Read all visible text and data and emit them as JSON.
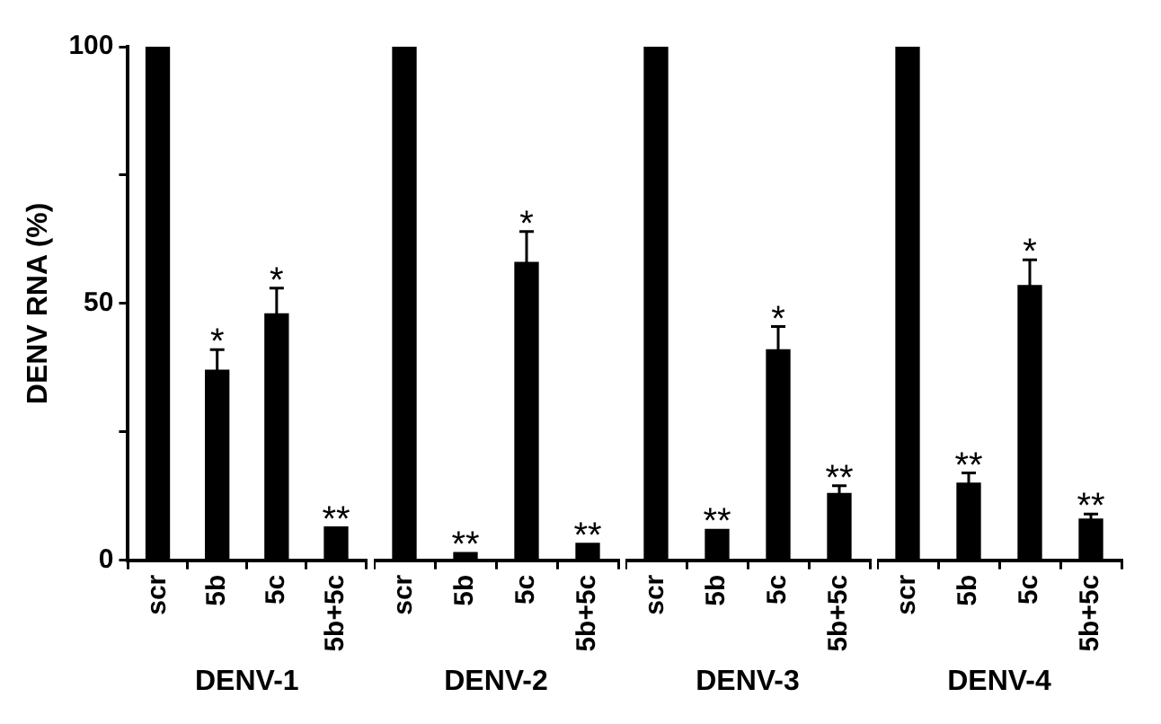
{
  "chart_data": [
    {
      "type": "bar",
      "xlabel": "DENV-1",
      "ylabel": "DENV RNA (%)",
      "categories": [
        "scr",
        "5b",
        "5c",
        "5b+5c"
      ],
      "values": [
        100,
        37,
        48,
        6.5
      ],
      "errors": [
        null,
        4,
        5,
        null
      ],
      "value_labels": [
        null,
        "*",
        "*",
        "**"
      ],
      "color": "#000000",
      "ylim": [
        0,
        100
      ],
      "yticks": [
        0,
        {
          "value": 25,
          "label": null
        },
        50,
        {
          "value": 75,
          "label": null
        },
        100
      ],
      "grid": false,
      "legend": false
    },
    {
      "type": "bar",
      "xlabel": "DENV-2",
      "categories": [
        "scr",
        "5b",
        "5c",
        "5b+5c"
      ],
      "values": [
        100,
        1.5,
        58,
        3.3
      ],
      "errors": [
        null,
        null,
        6,
        null
      ],
      "value_labels": [
        null,
        "**",
        "*",
        "**"
      ],
      "color": "#000000",
      "ylim": [
        0,
        100
      ],
      "tick_labels": "x",
      "grid": false,
      "legend": false
    },
    {
      "type": "bar",
      "xlabel": "DENV-3",
      "categories": [
        "scr",
        "5b",
        "5c",
        "5b+5c"
      ],
      "values": [
        100,
        6,
        41,
        13
      ],
      "errors": [
        null,
        null,
        4.5,
        1.5
      ],
      "value_labels": [
        null,
        "**",
        "*",
        "**"
      ],
      "color": "#000000",
      "ylim": [
        0,
        100
      ],
      "tick_labels": "x",
      "grid": false,
      "legend": false
    },
    {
      "type": "bar",
      "xlabel": "DENV-4",
      "categories": [
        "scr",
        "5b",
        "5c",
        "5b+5c"
      ],
      "values": [
        100,
        15,
        53.5,
        8
      ],
      "errors": [
        null,
        2,
        5,
        1
      ],
      "value_labels": [
        null,
        "**",
        "*",
        "**"
      ],
      "color": "#000000",
      "ylim": [
        0,
        100
      ],
      "tick_labels": "x",
      "grid": false,
      "legend": false
    }
  ]
}
